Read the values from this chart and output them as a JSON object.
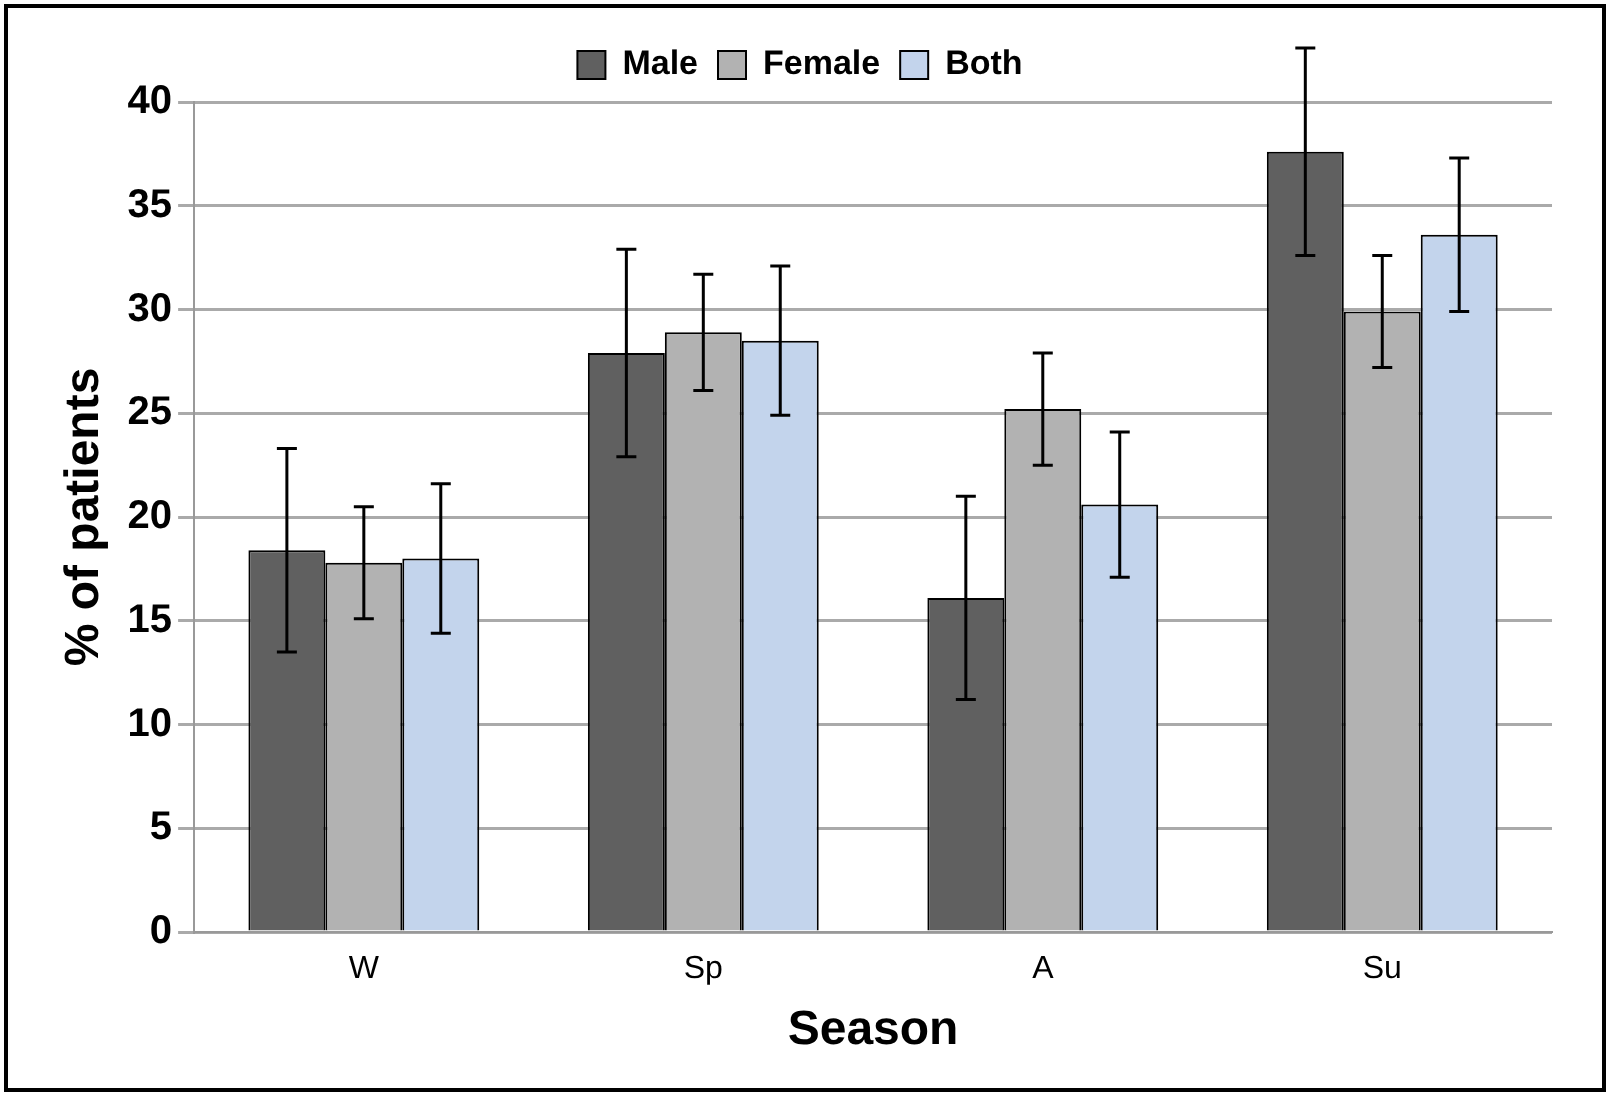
{
  "chart_data": {
    "type": "bar",
    "xlabel": "Season",
    "ylabel": "% of patients",
    "categories": [
      "W",
      "Sp",
      "A",
      "Su"
    ],
    "series": [
      {
        "name": "Male",
        "color": "#606060",
        "values": [
          18.4,
          27.9,
          16.1,
          37.6
        ],
        "errors": [
          4.9,
          5,
          4.9,
          5
        ]
      },
      {
        "name": "Female",
        "color": "#b2b2b2",
        "values": [
          17.8,
          28.9,
          25.2,
          29.9
        ],
        "errors": [
          2.7,
          2.8,
          2.7,
          2.7
        ]
      },
      {
        "name": "Both",
        "color": "#c3d4ec",
        "values": [
          18.0,
          28.5,
          20.6,
          33.6
        ],
        "errors": [
          3.6,
          3.6,
          3.5,
          3.7
        ]
      }
    ],
    "ylim": [
      0,
      40
    ],
    "yticks": [
      0,
      5,
      10,
      15,
      20,
      25,
      30,
      35,
      40
    ],
    "grid": "y",
    "legend": "top"
  }
}
